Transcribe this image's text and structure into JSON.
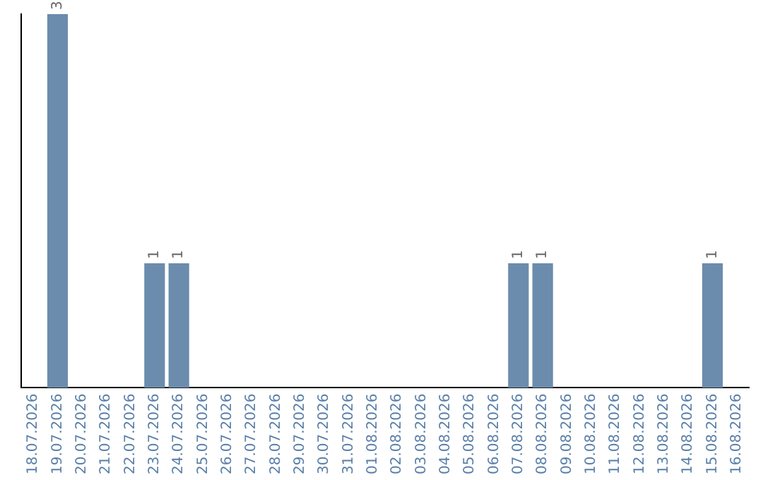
{
  "chart_data": {
    "type": "bar",
    "categories": [
      "18.07.2026",
      "19.07.2026",
      "20.07.2026",
      "21.07.2026",
      "22.07.2026",
      "23.07.2026",
      "24.07.2026",
      "25.07.2026",
      "26.07.2026",
      "27.07.2026",
      "28.07.2026",
      "29.07.2026",
      "30.07.2026",
      "31.07.2026",
      "01.08.2026",
      "02.08.2026",
      "03.08.2026",
      "04.08.2026",
      "05.08.2026",
      "06.08.2026",
      "07.08.2026",
      "08.08.2026",
      "09.08.2026",
      "10.08.2026",
      "11.08.2026",
      "12.08.2026",
      "13.08.2026",
      "14.08.2026",
      "15.08.2026",
      "16.08.2026"
    ],
    "values": [
      0,
      3,
      0,
      0,
      0,
      1,
      1,
      0,
      0,
      0,
      0,
      0,
      0,
      0,
      0,
      0,
      0,
      0,
      0,
      0,
      1,
      1,
      0,
      0,
      0,
      0,
      0,
      0,
      1,
      0
    ],
    "value_labels": [
      null,
      "3",
      null,
      null,
      null,
      "1",
      "1",
      null,
      null,
      null,
      null,
      null,
      null,
      null,
      null,
      null,
      null,
      null,
      null,
      null,
      "1",
      "1",
      null,
      null,
      null,
      null,
      null,
      null,
      "1",
      null
    ],
    "color": "#6b8cad",
    "grid": false,
    "legend": false,
    "tick_labels": "x"
  }
}
